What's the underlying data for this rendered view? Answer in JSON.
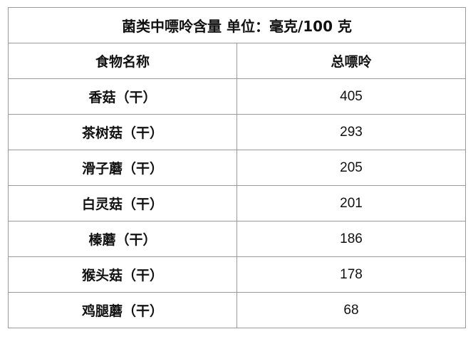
{
  "title": "菌类中嘌呤含量 单位：毫克/100 克",
  "headers": [
    "食物名称",
    "总嘌呤"
  ],
  "rows": [
    {
      "name": "香菇（干）",
      "value": "405"
    },
    {
      "name": "茶树菇（干）",
      "value": "293"
    },
    {
      "name": "滑子蘑（干）",
      "value": "205"
    },
    {
      "name": "白灵菇（干）",
      "value": "201"
    },
    {
      "name": "榛蘑（干）",
      "value": "186"
    },
    {
      "name": "猴头菇（干）",
      "value": "178"
    },
    {
      "name": "鸡腿蘑（干）",
      "value": "68"
    }
  ]
}
